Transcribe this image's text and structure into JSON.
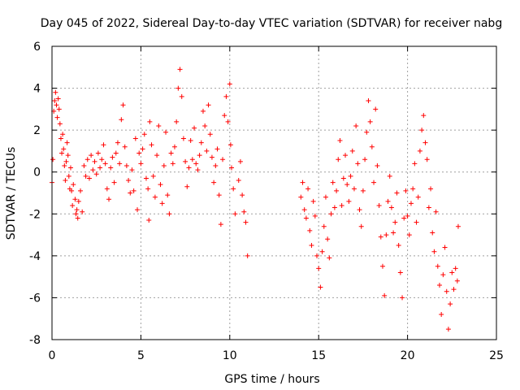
{
  "chart_data": {
    "type": "scatter",
    "title": "Day 045 of 2022, Sidereal Day-to-day VTEC variation (SDTVAR) for receiver nabg",
    "xlabel": "GPS time / hours",
    "ylabel": "SDTVAR / TECUs",
    "xlim": [
      0,
      25
    ],
    "ylim": [
      -8,
      6
    ],
    "xticks": [
      0,
      5,
      10,
      15,
      20,
      25
    ],
    "yticks": [
      -8,
      -6,
      -4,
      -2,
      0,
      2,
      4,
      6
    ],
    "xtick_labels": [
      "0",
      "5",
      "10",
      "15",
      "20",
      "25"
    ],
    "ytick_labels": [
      "-8",
      "-6",
      "-4",
      "-2",
      "0",
      "2",
      "4",
      "6"
    ],
    "grid": true,
    "marker": "+",
    "color": "#ff0000",
    "series": [
      {
        "name": "SDTVAR",
        "points": [
          [
            0.0,
            -0.5
          ],
          [
            0.05,
            0.6
          ],
          [
            0.1,
            2.9
          ],
          [
            0.15,
            3.4
          ],
          [
            0.2,
            3.8
          ],
          [
            0.25,
            3.2
          ],
          [
            0.3,
            2.6
          ],
          [
            0.35,
            3.5
          ],
          [
            0.4,
            3.0
          ],
          [
            0.45,
            2.3
          ],
          [
            0.5,
            1.6
          ],
          [
            0.55,
            0.9
          ],
          [
            0.6,
            1.8
          ],
          [
            0.65,
            1.1
          ],
          [
            0.7,
            0.3
          ],
          [
            0.75,
            -0.4
          ],
          [
            0.8,
            0.5
          ],
          [
            0.85,
            1.4
          ],
          [
            0.9,
            0.8
          ],
          [
            0.95,
            -0.2
          ],
          [
            1.0,
            -0.8
          ],
          [
            1.05,
            0.2
          ],
          [
            1.1,
            -0.9
          ],
          [
            1.15,
            -1.6
          ],
          [
            1.2,
            -0.6
          ],
          [
            1.3,
            -1.3
          ],
          [
            1.35,
            -2.0
          ],
          [
            1.4,
            -1.8
          ],
          [
            1.45,
            -2.2
          ],
          [
            1.5,
            -1.4
          ],
          [
            1.6,
            -0.9
          ],
          [
            1.7,
            -1.9
          ],
          [
            1.8,
            0.3
          ],
          [
            1.9,
            -0.2
          ],
          [
            2.0,
            0.6
          ],
          [
            2.1,
            -0.3
          ],
          [
            2.2,
            0.8
          ],
          [
            2.3,
            0.1
          ],
          [
            2.4,
            0.5
          ],
          [
            2.5,
            -0.1
          ],
          [
            2.6,
            0.9
          ],
          [
            2.7,
            0.2
          ],
          [
            2.8,
            0.6
          ],
          [
            2.9,
            1.3
          ],
          [
            3.0,
            0.4
          ],
          [
            3.1,
            -0.8
          ],
          [
            3.2,
            -1.3
          ],
          [
            3.3,
            0.2
          ],
          [
            3.4,
            0.7
          ],
          [
            3.5,
            -0.5
          ],
          [
            3.6,
            0.9
          ],
          [
            3.7,
            1.4
          ],
          [
            3.8,
            0.4
          ],
          [
            3.9,
            2.5
          ],
          [
            4.0,
            3.2
          ],
          [
            4.1,
            1.2
          ],
          [
            4.2,
            0.3
          ],
          [
            4.3,
            -0.4
          ],
          [
            4.4,
            -1.0
          ],
          [
            4.5,
            0.1
          ],
          [
            4.6,
            -0.9
          ],
          [
            4.7,
            1.6
          ],
          [
            4.8,
            -1.8
          ],
          [
            4.9,
            0.9
          ],
          [
            5.0,
            0.4
          ],
          [
            5.1,
            1.1
          ],
          [
            5.2,
            1.8
          ],
          [
            5.3,
            -0.3
          ],
          [
            5.4,
            -0.8
          ],
          [
            5.45,
            -2.3
          ],
          [
            5.5,
            2.4
          ],
          [
            5.6,
            1.3
          ],
          [
            5.7,
            -0.2
          ],
          [
            5.8,
            -1.2
          ],
          [
            5.9,
            0.8
          ],
          [
            6.0,
            2.2
          ],
          [
            6.1,
            -0.6
          ],
          [
            6.2,
            -1.5
          ],
          [
            6.3,
            0.3
          ],
          [
            6.4,
            1.9
          ],
          [
            6.5,
            -1.1
          ],
          [
            6.6,
            -2.0
          ],
          [
            6.7,
            0.9
          ],
          [
            6.8,
            0.4
          ],
          [
            6.9,
            1.2
          ],
          [
            7.0,
            2.4
          ],
          [
            7.1,
            4.0
          ],
          [
            7.2,
            4.9
          ],
          [
            7.3,
            3.6
          ],
          [
            7.4,
            1.6
          ],
          [
            7.5,
            0.5
          ],
          [
            7.6,
            -0.7
          ],
          [
            7.7,
            0.2
          ],
          [
            7.8,
            1.5
          ],
          [
            7.9,
            0.6
          ],
          [
            8.0,
            2.1
          ],
          [
            8.1,
            0.4
          ],
          [
            8.2,
            0.1
          ],
          [
            8.3,
            0.8
          ],
          [
            8.4,
            1.4
          ],
          [
            8.5,
            2.9
          ],
          [
            8.6,
            2.2
          ],
          [
            8.7,
            1.0
          ],
          [
            8.8,
            3.2
          ],
          [
            8.9,
            1.8
          ],
          [
            9.0,
            0.7
          ],
          [
            9.1,
            -0.5
          ],
          [
            9.2,
            0.3
          ],
          [
            9.3,
            1.1
          ],
          [
            9.4,
            -1.1
          ],
          [
            9.5,
            -2.5
          ],
          [
            9.6,
            0.6
          ],
          [
            9.7,
            2.7
          ],
          [
            9.8,
            3.6
          ],
          [
            9.9,
            2.4
          ],
          [
            10.0,
            4.2
          ],
          [
            10.05,
            1.3
          ],
          [
            10.1,
            0.2
          ],
          [
            10.2,
            -0.8
          ],
          [
            10.3,
            -2.0
          ],
          [
            10.5,
            -0.4
          ],
          [
            10.6,
            0.5
          ],
          [
            10.7,
            -1.1
          ],
          [
            10.8,
            -1.9
          ],
          [
            10.9,
            -2.4
          ],
          [
            11.0,
            -4.0
          ],
          [
            14.0,
            -1.2
          ],
          [
            14.1,
            -0.5
          ],
          [
            14.2,
            -1.8
          ],
          [
            14.3,
            -2.2
          ],
          [
            14.4,
            -0.8
          ],
          [
            14.5,
            -2.8
          ],
          [
            14.6,
            -3.5
          ],
          [
            14.7,
            -1.4
          ],
          [
            14.8,
            -2.1
          ],
          [
            14.9,
            -4.0
          ],
          [
            15.0,
            -4.6
          ],
          [
            15.1,
            -5.5
          ],
          [
            15.2,
            -3.8
          ],
          [
            15.3,
            -2.6
          ],
          [
            15.4,
            -1.2
          ],
          [
            15.5,
            -3.2
          ],
          [
            15.6,
            -4.1
          ],
          [
            15.7,
            -2.0
          ],
          [
            15.8,
            -0.5
          ],
          [
            15.9,
            -1.7
          ],
          [
            16.0,
            -0.9
          ],
          [
            16.1,
            0.6
          ],
          [
            16.2,
            1.5
          ],
          [
            16.3,
            -1.6
          ],
          [
            16.4,
            -0.3
          ],
          [
            16.5,
            0.8
          ],
          [
            16.6,
            -0.6
          ],
          [
            16.7,
            -1.4
          ],
          [
            16.8,
            -0.2
          ],
          [
            16.9,
            1.0
          ],
          [
            17.0,
            -0.8
          ],
          [
            17.1,
            2.2
          ],
          [
            17.2,
            0.4
          ],
          [
            17.3,
            -1.8
          ],
          [
            17.4,
            -2.6
          ],
          [
            17.5,
            -0.9
          ],
          [
            17.6,
            0.6
          ],
          [
            17.7,
            1.9
          ],
          [
            17.8,
            3.4
          ],
          [
            17.9,
            2.4
          ],
          [
            18.0,
            1.2
          ],
          [
            18.1,
            -0.5
          ],
          [
            18.2,
            3.0
          ],
          [
            18.3,
            0.3
          ],
          [
            18.4,
            -1.6
          ],
          [
            18.5,
            -3.1
          ],
          [
            18.6,
            -4.5
          ],
          [
            18.7,
            -5.9
          ],
          [
            18.8,
            -3.0
          ],
          [
            18.9,
            -1.4
          ],
          [
            19.0,
            -0.2
          ],
          [
            19.1,
            -1.7
          ],
          [
            19.2,
            -2.9
          ],
          [
            19.3,
            -2.4
          ],
          [
            19.4,
            -1.0
          ],
          [
            19.5,
            -3.5
          ],
          [
            19.6,
            -4.8
          ],
          [
            19.7,
            -6.0
          ],
          [
            19.8,
            -2.2
          ],
          [
            19.9,
            -0.9
          ],
          [
            20.0,
            -2.1
          ],
          [
            20.1,
            -3.0
          ],
          [
            20.2,
            -1.5
          ],
          [
            20.3,
            -0.8
          ],
          [
            20.4,
            0.4
          ],
          [
            20.5,
            -2.4
          ],
          [
            20.6,
            -1.2
          ],
          [
            20.7,
            1.0
          ],
          [
            20.8,
            2.0
          ],
          [
            20.9,
            2.7
          ],
          [
            21.0,
            1.4
          ],
          [
            21.1,
            0.6
          ],
          [
            21.2,
            -1.7
          ],
          [
            21.3,
            -0.8
          ],
          [
            21.4,
            -2.9
          ],
          [
            21.5,
            -3.8
          ],
          [
            21.6,
            -1.9
          ],
          [
            21.7,
            -4.5
          ],
          [
            21.8,
            -5.4
          ],
          [
            21.9,
            -6.8
          ],
          [
            22.0,
            -4.9
          ],
          [
            22.1,
            -3.6
          ],
          [
            22.2,
            -5.7
          ],
          [
            22.3,
            -7.5
          ],
          [
            22.4,
            -6.3
          ],
          [
            22.5,
            -4.8
          ],
          [
            22.6,
            -5.6
          ],
          [
            22.7,
            -4.6
          ],
          [
            22.8,
            -5.2
          ],
          [
            22.85,
            -2.6
          ]
        ]
      }
    ]
  }
}
